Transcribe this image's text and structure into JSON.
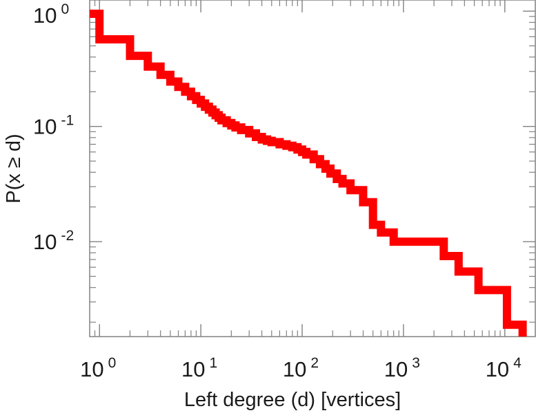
{
  "chart_data": {
    "type": "line",
    "style": "step-ccdf",
    "xlabel": "Left degree (d) [vertices]",
    "ylabel": "P(x ≥ d)",
    "xscale": "log",
    "yscale": "log",
    "xlim": [
      0.8,
      20000
    ],
    "ylim": [
      0.0015,
      1.25
    ],
    "grid": false,
    "line_color": "#ff0000",
    "x_ticks": [
      {
        "base": "10",
        "exp": "0",
        "value": 1
      },
      {
        "base": "10",
        "exp": "1",
        "value": 10
      },
      {
        "base": "10",
        "exp": "2",
        "value": 100
      },
      {
        "base": "10",
        "exp": "3",
        "value": 1000
      },
      {
        "base": "10",
        "exp": "4",
        "value": 10000
      }
    ],
    "y_ticks": [
      {
        "base": "10",
        "exp": "0",
        "value": 1
      },
      {
        "base": "10",
        "exp": "-1",
        "value": 0.1
      },
      {
        "base": "10",
        "exp": "-2",
        "value": 0.01
      }
    ],
    "series": [
      {
        "x": [
          0.8,
          1,
          2,
          3,
          4,
          5,
          6,
          7,
          8,
          9,
          10,
          11,
          12,
          13,
          14,
          15,
          16,
          18,
          20,
          22,
          25,
          30,
          35,
          40,
          45,
          50,
          60,
          70,
          80,
          90,
          100,
          110,
          130,
          150,
          170,
          190,
          220,
          250,
          300,
          350,
          400,
          500,
          600,
          700,
          800,
          1000,
          2500,
          3500,
          5500,
          10500,
          15000
        ],
        "y": [
          0.95,
          0.57,
          0.41,
          0.33,
          0.28,
          0.245,
          0.22,
          0.2,
          0.183,
          0.17,
          0.158,
          0.148,
          0.14,
          0.132,
          0.125,
          0.119,
          0.113,
          0.107,
          0.102,
          0.098,
          0.093,
          0.087,
          0.081,
          0.077,
          0.075,
          0.073,
          0.07,
          0.068,
          0.066,
          0.063,
          0.06,
          0.057,
          0.052,
          0.047,
          0.043,
          0.039,
          0.035,
          0.032,
          0.028,
          0.028,
          0.022,
          0.014,
          0.012,
          0.012,
          0.01,
          0.01,
          0.0075,
          0.0055,
          0.0038,
          0.0019,
          0.0015
        ]
      }
    ]
  }
}
